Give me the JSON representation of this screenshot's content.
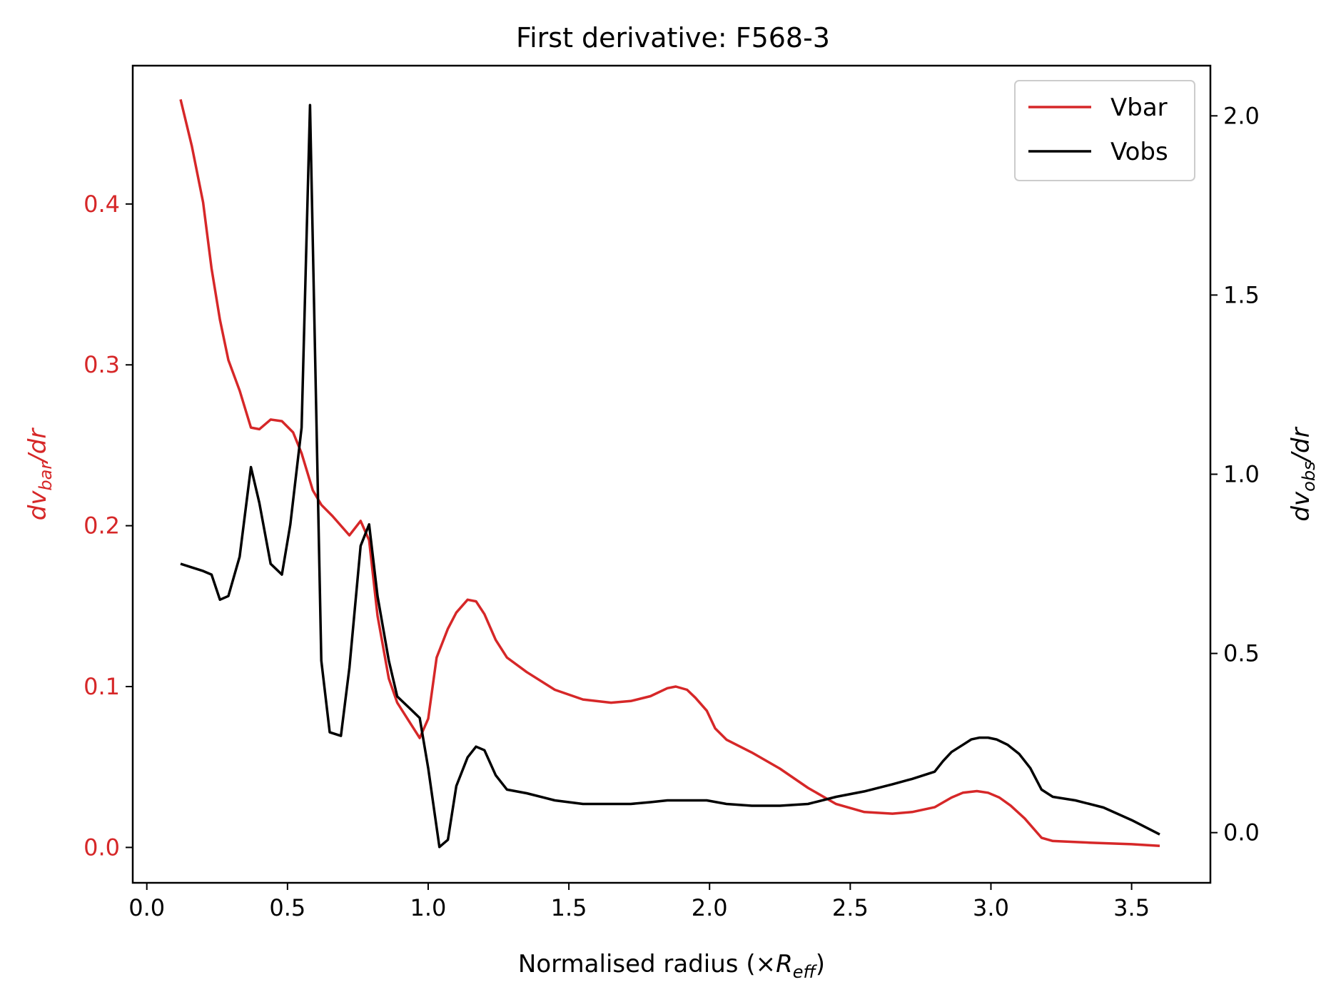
{
  "chart_data": {
    "type": "line",
    "title": "First derivative: F568-3",
    "xlabel": "Normalised radius (×R_eff)",
    "xlabel_prefix": "Normalised radius (×",
    "xlabel_symbol": "R",
    "xlabel_sub": "eff",
    "xlabel_suffix": ")",
    "ylabel_left_symbol": "dv",
    "ylabel_left_sub": "bar",
    "ylabel_left_suffix": "/dr",
    "ylabel_right_symbol": "dv",
    "ylabel_right_sub": "obs",
    "ylabel_right_suffix": "/dr",
    "xlim": [
      -0.05,
      3.78
    ],
    "ylim_left": [
      -0.022,
      0.486
    ],
    "ylim_right": [
      -0.14,
      2.14
    ],
    "xticks": [
      "0.0",
      "0.5",
      "1.0",
      "1.5",
      "2.0",
      "2.5",
      "3.0",
      "3.5"
    ],
    "yticks_left": [
      "0.0",
      "0.1",
      "0.2",
      "0.3",
      "0.4"
    ],
    "yticks_right": [
      "0.0",
      "0.5",
      "1.0",
      "1.5",
      "2.0"
    ],
    "legend_position": "upper right",
    "grid": false,
    "left_axis_color": "#d62728",
    "right_axis_color": "#000000",
    "series": [
      {
        "name": "Vbar",
        "axis": "left",
        "color": "#d62728",
        "x": [
          0.12,
          0.16,
          0.2,
          0.23,
          0.26,
          0.29,
          0.33,
          0.37,
          0.4,
          0.44,
          0.48,
          0.52,
          0.55,
          0.59,
          0.62,
          0.66,
          0.72,
          0.76,
          0.79,
          0.82,
          0.86,
          0.89,
          0.93,
          0.97,
          1.0,
          1.03,
          1.07,
          1.1,
          1.14,
          1.17,
          1.2,
          1.24,
          1.28,
          1.35,
          1.45,
          1.55,
          1.65,
          1.72,
          1.79,
          1.85,
          1.88,
          1.92,
          1.95,
          1.99,
          2.02,
          2.06,
          2.15,
          2.25,
          2.35,
          2.45,
          2.55,
          2.65,
          2.72,
          2.8,
          2.86,
          2.9,
          2.95,
          2.99,
          3.03,
          3.07,
          3.12,
          3.18,
          3.22,
          3.35,
          3.5,
          3.6
        ],
        "y": [
          0.465,
          0.436,
          0.401,
          0.36,
          0.328,
          0.303,
          0.284,
          0.261,
          0.26,
          0.266,
          0.265,
          0.258,
          0.245,
          0.222,
          0.213,
          0.206,
          0.194,
          0.203,
          0.191,
          0.144,
          0.105,
          0.09,
          0.079,
          0.068,
          0.08,
          0.118,
          0.136,
          0.146,
          0.154,
          0.153,
          0.145,
          0.129,
          0.118,
          0.109,
          0.098,
          0.092,
          0.09,
          0.091,
          0.094,
          0.099,
          0.1,
          0.098,
          0.093,
          0.085,
          0.074,
          0.067,
          0.059,
          0.049,
          0.037,
          0.027,
          0.022,
          0.021,
          0.022,
          0.025,
          0.031,
          0.034,
          0.035,
          0.034,
          0.031,
          0.026,
          0.018,
          0.006,
          0.004,
          0.003,
          0.002,
          0.001
        ]
      },
      {
        "name": "Vobs",
        "axis": "right",
        "color": "#000000",
        "x": [
          0.12,
          0.16,
          0.2,
          0.23,
          0.26,
          0.29,
          0.33,
          0.37,
          0.4,
          0.44,
          0.48,
          0.51,
          0.55,
          0.58,
          0.62,
          0.65,
          0.69,
          0.72,
          0.76,
          0.79,
          0.82,
          0.86,
          0.89,
          0.93,
          0.97,
          1.0,
          1.04,
          1.07,
          1.1,
          1.14,
          1.17,
          1.2,
          1.24,
          1.28,
          1.35,
          1.45,
          1.55,
          1.65,
          1.72,
          1.79,
          1.85,
          1.92,
          1.99,
          2.06,
          2.15,
          2.25,
          2.35,
          2.45,
          2.55,
          2.65,
          2.72,
          2.8,
          2.83,
          2.86,
          2.9,
          2.93,
          2.96,
          2.99,
          3.02,
          3.06,
          3.1,
          3.14,
          3.18,
          3.22,
          3.3,
          3.4,
          3.5,
          3.6
        ],
        "y": [
          0.75,
          0.74,
          0.73,
          0.72,
          0.65,
          0.66,
          0.77,
          1.02,
          0.92,
          0.75,
          0.72,
          0.86,
          1.13,
          2.03,
          0.48,
          0.28,
          0.27,
          0.46,
          0.8,
          0.86,
          0.66,
          0.48,
          0.38,
          0.35,
          0.32,
          0.18,
          -0.04,
          -0.02,
          0.13,
          0.21,
          0.24,
          0.23,
          0.16,
          0.12,
          0.11,
          0.09,
          0.08,
          0.08,
          0.08,
          0.085,
          0.09,
          0.09,
          0.09,
          0.08,
          0.075,
          0.075,
          0.08,
          0.1,
          0.115,
          0.135,
          0.15,
          0.17,
          0.2,
          0.225,
          0.245,
          0.26,
          0.265,
          0.265,
          0.26,
          0.245,
          0.22,
          0.18,
          0.12,
          0.1,
          0.09,
          0.07,
          0.035,
          -0.005
        ]
      }
    ]
  }
}
